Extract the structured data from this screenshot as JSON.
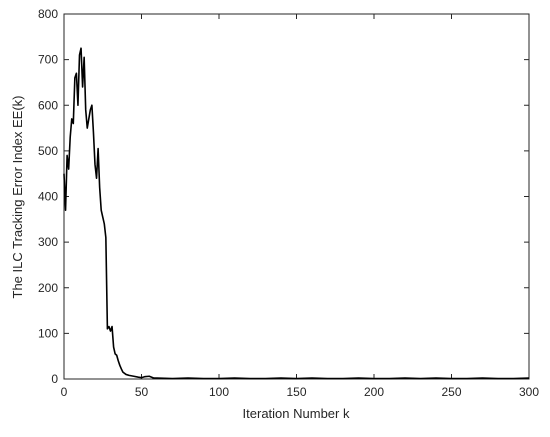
{
  "chart_data": {
    "type": "line",
    "xlabel": "Iteration Number k",
    "ylabel": "The ILC Tracking Error Index EE(k)",
    "x": [
      0,
      1,
      2,
      3,
      4,
      5,
      6,
      7,
      8,
      9,
      10,
      11,
      12,
      13,
      14,
      15,
      16,
      17,
      18,
      19,
      20,
      21,
      22,
      23,
      24,
      25,
      26,
      27,
      28,
      29,
      30,
      31,
      32,
      33,
      34,
      35,
      36,
      37,
      38,
      40,
      42,
      45,
      48,
      50,
      52,
      55,
      58,
      60,
      70,
      80,
      90,
      100,
      110,
      120,
      130,
      140,
      150,
      160,
      170,
      180,
      190,
      200,
      210,
      220,
      230,
      240,
      250,
      260,
      270,
      280,
      290,
      300
    ],
    "series": [
      {
        "name": "EE(k)",
        "color": "#000000",
        "values": [
          450,
          370,
          490,
          460,
          530,
          570,
          560,
          660,
          670,
          600,
          710,
          725,
          640,
          705,
          590,
          550,
          570,
          590,
          600,
          540,
          470,
          440,
          505,
          420,
          370,
          355,
          340,
          310,
          110,
          115,
          105,
          115,
          70,
          55,
          52,
          40,
          30,
          22,
          15,
          10,
          8,
          6,
          4,
          3,
          5,
          6,
          2,
          2,
          1,
          2,
          1,
          1,
          2,
          1,
          1,
          2,
          1,
          2,
          1,
          1,
          2,
          1,
          1,
          2,
          1,
          2,
          1,
          1,
          2,
          1,
          1,
          2
        ]
      }
    ],
    "xlim": [
      0,
      300
    ],
    "xticks": [
      0,
      50,
      100,
      150,
      200,
      250,
      300
    ],
    "ylim": [
      0,
      800
    ],
    "yticks": [
      0,
      100,
      200,
      300,
      400,
      500,
      600,
      700,
      800
    ]
  }
}
